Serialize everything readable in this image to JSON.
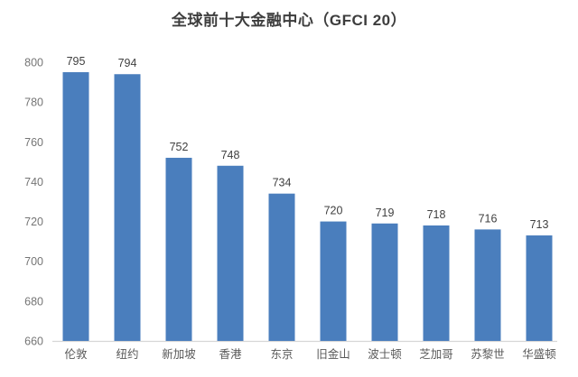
{
  "chart_data": {
    "type": "bar",
    "title": "全球前十大金融中心（GFCI 20）",
    "categories": [
      "伦敦",
      "纽约",
      "新加坡",
      "香港",
      "东京",
      "旧金山",
      "波士顿",
      "芝加哥",
      "苏黎世",
      "华盛顿"
    ],
    "values": [
      795,
      794,
      752,
      748,
      734,
      720,
      719,
      718,
      716,
      713
    ],
    "xlabel": "",
    "ylabel": "",
    "ylim": [
      660,
      800
    ],
    "yticks": [
      660,
      680,
      700,
      720,
      740,
      760,
      780,
      800
    ],
    "grid": false,
    "legend": false,
    "data_labels_shown": true
  },
  "colors": {
    "bar": "#4a7ebd",
    "title": "#3d3d3d",
    "data_label": "#404040",
    "y_tick_label": "#757575",
    "x_tick_label": "#595959",
    "axis_line": "#d6d6d6",
    "background": "#ffffff"
  }
}
